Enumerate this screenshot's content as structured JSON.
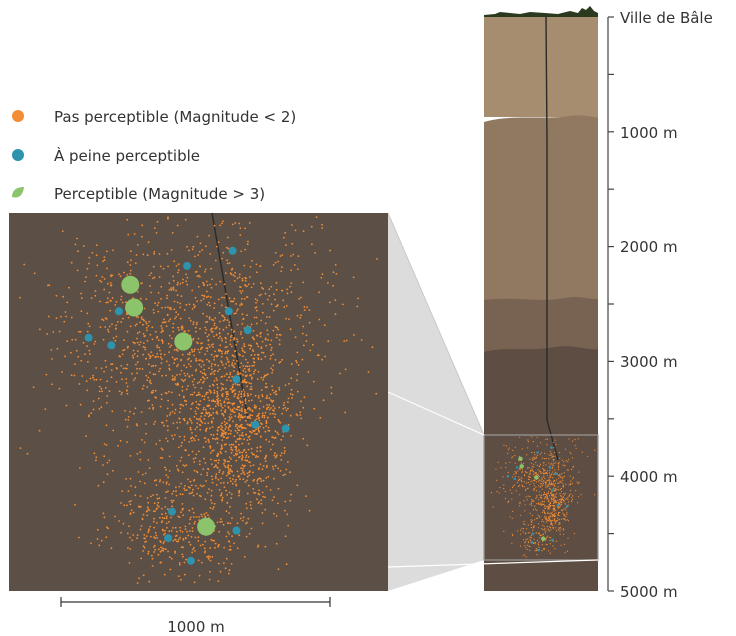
{
  "legend": {
    "items": [
      {
        "label": "Pas perceptible (Magnitude < 2)",
        "color": "#f28d35"
      },
      {
        "label": "À peine perceptible",
        "color": "#2e93ad"
      },
      {
        "label": "Perceptible (Magnitude > 3)",
        "color": "#8cc46b"
      }
    ]
  },
  "depth_axis": {
    "top_label": "Ville de Bâle",
    "unit": "m",
    "ticks": [
      {
        "depth": 1000,
        "label": "1000 m"
      },
      {
        "depth": 2000,
        "label": "2000 m"
      },
      {
        "depth": 3000,
        "label": "3000 m"
      },
      {
        "depth": 4000,
        "label": "4000 m"
      },
      {
        "depth": 5000,
        "label": "5000 m"
      }
    ]
  },
  "scale_bar": {
    "label": "1000 m",
    "length_m": 1000
  },
  "colors": {
    "surface": "#2b3a1f",
    "layer1": "#a68d70",
    "layer2": "#917860",
    "layer3": "#786353",
    "layer4": "#5e4d42",
    "zoom_panel": "#5c4f45",
    "zoom_connector": "#d3d3d3",
    "borehole": "#2a2a2a",
    "orange": "#f28d35",
    "blue": "#2e93ad",
    "green": "#8cc46b"
  }
}
